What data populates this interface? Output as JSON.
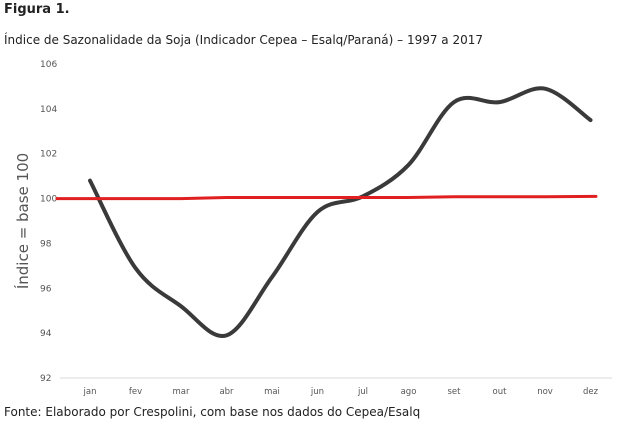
{
  "figure_label": "Figura 1.",
  "source_note": "Fonte: Elaborado por Crespolini, com base nos dados do Cepea/Esalq",
  "chart_data": {
    "type": "line",
    "title": "Índice de Sazonalidade da Soja (Indicador Cepea – Esalq/Paraná) – 1997 a 2017",
    "xlabel": "",
    "ylabel": "Índice = base 100",
    "categories": [
      "jan",
      "fev",
      "mar",
      "abr",
      "mai",
      "jun",
      "jul",
      "ago",
      "set",
      "out",
      "nov",
      "dez"
    ],
    "ylim": [
      92,
      106
    ],
    "yticks": [
      92,
      94,
      96,
      98,
      100,
      102,
      104,
      106
    ],
    "grid": false,
    "series": [
      {
        "values": [
          100.8,
          96.9,
          95.2,
          93.9,
          96.5,
          99.4,
          100.1,
          101.5,
          104.3,
          104.3,
          104.9,
          103.5
        ],
        "color": "#3a3a3a"
      },
      {
        "values": [
          100.0,
          100.0,
          100.0,
          100.05,
          100.05,
          100.05,
          100.05,
          100.05,
          100.08,
          100.08,
          100.08,
          100.1
        ],
        "color": "#e02020"
      }
    ]
  }
}
